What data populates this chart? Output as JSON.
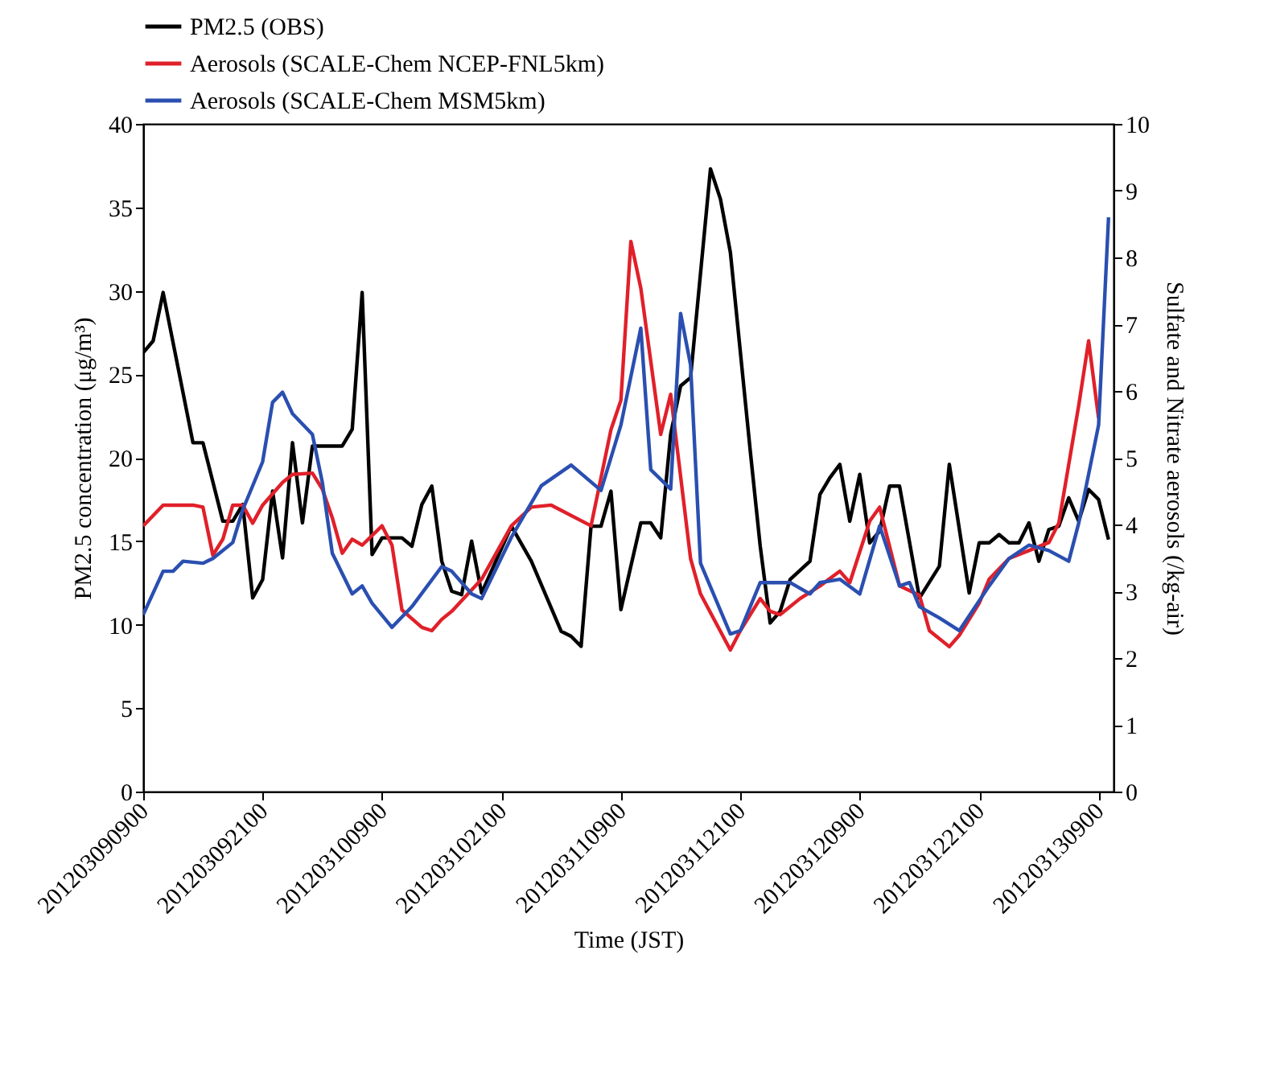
{
  "chart_data": {
    "type": "line",
    "xlabel": "Time (JST)",
    "ylabel": "PM2.5  concentration  (μg/m³)",
    "y2label": "Sulfate and Nitrate aerosols (/kg-air)",
    "legend": "top",
    "xlim": [
      "2012-03-09T09:00",
      "2012-03-13T10:30"
    ],
    "xticks": [
      {
        "value": "2012-03-09T09:00",
        "label": "201203090900"
      },
      {
        "value": "2012-03-09T21:00",
        "label": "201203092100"
      },
      {
        "value": "2012-03-10T09:00",
        "label": "201203100900"
      },
      {
        "value": "2012-03-10T21:00",
        "label": "201203102100"
      },
      {
        "value": "2012-03-11T09:00",
        "label": "201203110900"
      },
      {
        "value": "2012-03-11T21:00",
        "label": "201203112100"
      },
      {
        "value": "2012-03-12T09:00",
        "label": "201203120900"
      },
      {
        "value": "2012-03-12T21:00",
        "label": "201203122100"
      },
      {
        "value": "2012-03-13T09:00",
        "label": "201203130900"
      }
    ],
    "ylim": [
      0,
      40
    ],
    "yticks": [
      0,
      5,
      10,
      15,
      20,
      25,
      30,
      35,
      40
    ],
    "y2lim": [
      0,
      10
    ],
    "y2ticks": [
      0,
      1,
      2,
      3,
      4,
      5,
      6,
      7,
      8,
      9,
      10
    ],
    "series": [
      {
        "name": "PM2.5 (OBS)",
        "color": "#000000",
        "x": [
          "2012-03-09T09:00",
          "2012-03-09T10:00",
          "2012-03-09T11:00",
          "2012-03-09T14:00",
          "2012-03-09T15:00",
          "2012-03-09T17:00",
          "2012-03-09T18:00",
          "2012-03-09T19:00",
          "2012-03-09T20:00",
          "2012-03-09T21:00",
          "2012-03-09T22:00",
          "2012-03-09T23:00",
          "2012-03-10T00:00",
          "2012-03-10T01:00",
          "2012-03-10T02:00",
          "2012-03-10T05:00",
          "2012-03-10T06:00",
          "2012-03-10T07:00",
          "2012-03-10T08:00",
          "2012-03-10T09:00",
          "2012-03-10T11:00",
          "2012-03-10T12:00",
          "2012-03-10T13:00",
          "2012-03-10T14:00",
          "2012-03-10T15:00",
          "2012-03-10T16:00",
          "2012-03-10T17:00",
          "2012-03-10T18:00",
          "2012-03-10T19:00",
          "2012-03-10T22:00",
          "2012-03-11T00:00",
          "2012-03-11T03:00",
          "2012-03-11T04:00",
          "2012-03-11T05:00",
          "2012-03-11T06:00",
          "2012-03-11T07:00",
          "2012-03-11T08:00",
          "2012-03-11T09:00",
          "2012-03-11T11:00",
          "2012-03-11T12:00",
          "2012-03-11T13:00",
          "2012-03-11T14:00",
          "2012-03-11T15:00",
          "2012-03-11T16:00",
          "2012-03-11T18:00",
          "2012-03-11T19:00",
          "2012-03-11T20:00",
          "2012-03-11T22:00",
          "2012-03-11T23:00",
          "2012-03-12T00:00",
          "2012-03-12T01:00",
          "2012-03-12T02:00",
          "2012-03-12T04:00",
          "2012-03-12T05:00",
          "2012-03-12T06:00",
          "2012-03-12T07:00",
          "2012-03-12T08:00",
          "2012-03-12T09:00",
          "2012-03-12T10:00",
          "2012-03-12T11:00",
          "2012-03-12T12:00",
          "2012-03-12T13:00",
          "2012-03-12T15:00",
          "2012-03-12T17:00",
          "2012-03-12T18:00",
          "2012-03-12T20:00",
          "2012-03-12T21:00",
          "2012-03-12T22:00",
          "2012-03-12T23:00",
          "2012-03-13T00:00",
          "2012-03-13T01:00",
          "2012-03-13T02:00",
          "2012-03-13T03:00",
          "2012-03-13T04:00",
          "2012-03-13T05:00",
          "2012-03-13T06:00",
          "2012-03-13T07:00",
          "2012-03-13T08:00",
          "2012-03-13T09:00",
          "2012-03-13T10:00"
        ],
        "values": [
          26.3,
          27,
          29.9,
          20.9,
          20.9,
          16.2,
          16.2,
          17.2,
          11.6,
          12.7,
          18,
          14,
          20.9,
          16.1,
          20.7,
          20.7,
          21.7,
          29.9,
          14.2,
          15.2,
          15.2,
          14.7,
          17.2,
          18.3,
          13.8,
          12,
          11.8,
          15,
          11.9,
          15.9,
          13.8,
          9.6,
          9.3,
          8.7,
          15.9,
          15.9,
          18,
          10.9,
          16.1,
          16.1,
          15.2,
          21.4,
          24.3,
          24.8,
          37.3,
          35.5,
          32.3,
          20.4,
          14.7,
          10.1,
          10.8,
          12.7,
          13.8,
          17.8,
          18.8,
          19.6,
          16.2,
          19,
          14.9,
          15.6,
          18.3,
          18.3,
          11.6,
          13.5,
          19.6,
          11.9,
          14.9,
          14.9,
          15.4,
          14.9,
          14.9,
          16.1,
          13.8,
          15.7,
          15.9,
          17.6,
          16.2,
          18.1,
          17.5,
          15.1
        ]
      },
      {
        "name": "Aerosols (SCALE-Chem NCEP-FNL5km)",
        "color": "#e0202a",
        "axis": "y2",
        "x": [
          "2012-03-09T09:00",
          "2012-03-09T11:00",
          "2012-03-09T14:00",
          "2012-03-09T15:00",
          "2012-03-09T16:00",
          "2012-03-09T17:00",
          "2012-03-09T18:00",
          "2012-03-09T19:00",
          "2012-03-09T20:00",
          "2012-03-09T21:00",
          "2012-03-09T23:00",
          "2012-03-10T00:00",
          "2012-03-10T02:00",
          "2012-03-10T03:00",
          "2012-03-10T04:00",
          "2012-03-10T05:00",
          "2012-03-10T06:00",
          "2012-03-10T07:00",
          "2012-03-10T09:00",
          "2012-03-10T10:00",
          "2012-03-10T11:00",
          "2012-03-10T13:00",
          "2012-03-10T14:00",
          "2012-03-10T15:00",
          "2012-03-10T16:00",
          "2012-03-10T19:00",
          "2012-03-10T22:00",
          "2012-03-11T00:00",
          "2012-03-11T02:00",
          "2012-03-11T06:00",
          "2012-03-11T08:00",
          "2012-03-11T09:00",
          "2012-03-11T10:00",
          "2012-03-11T11:00",
          "2012-03-11T13:00",
          "2012-03-11T14:00",
          "2012-03-11T16:00",
          "2012-03-11T17:00",
          "2012-03-11T20:00",
          "2012-03-11T21:00",
          "2012-03-11T23:00",
          "2012-03-12T00:00",
          "2012-03-12T01:00",
          "2012-03-12T03:00",
          "2012-03-12T05:00",
          "2012-03-12T07:00",
          "2012-03-12T08:00",
          "2012-03-12T10:00",
          "2012-03-12T11:00",
          "2012-03-12T13:00",
          "2012-03-12T15:00",
          "2012-03-12T16:00",
          "2012-03-12T18:00",
          "2012-03-12T19:00",
          "2012-03-12T21:00",
          "2012-03-12T22:00",
          "2012-03-13T00:00",
          "2012-03-13T02:00",
          "2012-03-13T04:00",
          "2012-03-13T05:00",
          "2012-03-13T07:00",
          "2012-03-13T08:00",
          "2012-03-13T09:00"
        ],
        "values": [
          3.98,
          4.29,
          4.29,
          4.26,
          3.54,
          3.78,
          4.29,
          4.29,
          4.02,
          4.29,
          4.63,
          4.75,
          4.77,
          4.53,
          4.1,
          3.57,
          3.78,
          3.69,
          3.98,
          3.69,
          2.72,
          2.46,
          2.41,
          2.58,
          2.7,
          3.18,
          3.98,
          4.26,
          4.29,
          3.98,
          5.42,
          5.86,
          8.24,
          7.54,
          5.35,
          5.95,
          3.49,
          2.96,
          2.12,
          2.41,
          2.89,
          2.7,
          2.65,
          2.89,
          3.08,
          3.3,
          3.13,
          4.05,
          4.26,
          3.08,
          2.94,
          2.41,
          2.17,
          2.34,
          2.82,
          3.18,
          3.49,
          3.61,
          3.73,
          4.02,
          5.78,
          6.75,
          5.59
        ]
      },
      {
        "name": "Aerosols (SCALE-Chem MSM5km)",
        "color": "#2a4fb0",
        "axis": "y2",
        "x": [
          "2012-03-09T09:00",
          "2012-03-09T11:00",
          "2012-03-09T12:00",
          "2012-03-09T13:00",
          "2012-03-09T15:00",
          "2012-03-09T16:00",
          "2012-03-09T18:00",
          "2012-03-09T19:00",
          "2012-03-09T21:00",
          "2012-03-09T22:00",
          "2012-03-09T23:00",
          "2012-03-10T00:00",
          "2012-03-10T02:00",
          "2012-03-10T03:00",
          "2012-03-10T04:00",
          "2012-03-10T06:00",
          "2012-03-10T07:00",
          "2012-03-10T08:00",
          "2012-03-10T10:00",
          "2012-03-10T12:00",
          "2012-03-10T15:00",
          "2012-03-10T16:00",
          "2012-03-10T18:00",
          "2012-03-10T19:00",
          "2012-03-10T22:00",
          "2012-03-11T01:00",
          "2012-03-11T04:00",
          "2012-03-11T07:00",
          "2012-03-11T09:00",
          "2012-03-11T11:00",
          "2012-03-11T12:00",
          "2012-03-11T14:00",
          "2012-03-11T15:00",
          "2012-03-11T16:00",
          "2012-03-11T17:00",
          "2012-03-11T20:00",
          "2012-03-11T21:00",
          "2012-03-11T23:00",
          "2012-03-12T01:00",
          "2012-03-12T02:00",
          "2012-03-12T04:00",
          "2012-03-12T05:00",
          "2012-03-12T07:00",
          "2012-03-12T09:00",
          "2012-03-12T11:00",
          "2012-03-12T13:00",
          "2012-03-12T14:00",
          "2012-03-12T15:00",
          "2012-03-12T17:00",
          "2012-03-12T19:00",
          "2012-03-12T22:00",
          "2012-03-13T00:00",
          "2012-03-13T02:00",
          "2012-03-13T04:00",
          "2012-03-13T06:00",
          "2012-03-13T07:00",
          "2012-03-13T09:00",
          "2012-03-13T10:00"
        ],
        "values": [
          2.65,
          3.3,
          3.3,
          3.45,
          3.42,
          3.49,
          3.73,
          4.22,
          4.94,
          5.83,
          5.98,
          5.66,
          5.35,
          4.63,
          3.57,
          2.96,
          3.08,
          2.82,
          2.46,
          2.77,
          3.37,
          3.3,
          2.96,
          2.89,
          3.81,
          4.58,
          4.89,
          4.51,
          5.49,
          6.94,
          4.82,
          4.53,
          7.16,
          6.39,
          3.42,
          2.36,
          2.41,
          3.13,
          3.13,
          3.13,
          2.96,
          3.13,
          3.18,
          2.96,
          3.98,
          3.08,
          3.13,
          2.77,
          2.6,
          2.41,
          3.08,
          3.49,
          3.69,
          3.61,
          3.45,
          4.02,
          5.49,
          8.6
        ]
      }
    ]
  }
}
